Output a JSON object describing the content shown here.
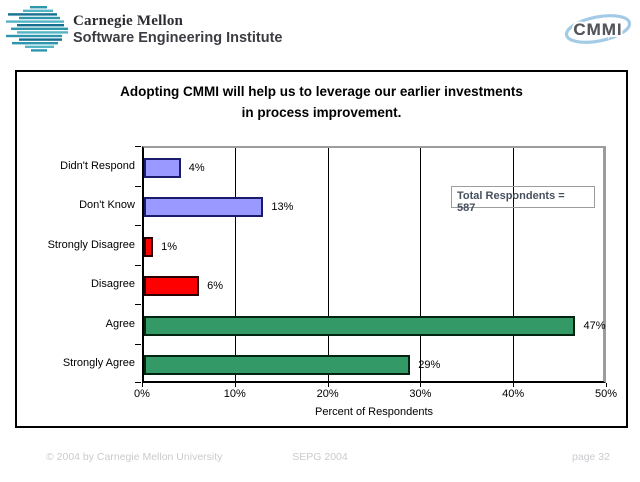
{
  "header": {
    "org_line1": "Carnegie Mellon",
    "org_line2": "Software Engineering Institute",
    "cmmi_logo_text": "CMMI"
  },
  "slide": {
    "title_line1": "Adopting CMMI will help us to leverage our earlier investments",
    "title_line2": "in process improvement.",
    "annotation_line1": "Total Respondents =",
    "annotation_line2": "587"
  },
  "chart_data": {
    "type": "bar",
    "orientation": "horizontal",
    "title": "Adopting CMMI will help us to leverage our earlier investments in process improvement.",
    "categories": [
      "Didn't Respond",
      "Don't Know",
      "Strongly Disagree",
      "Disagree",
      "Agree",
      "Strongly Agree"
    ],
    "values": [
      4,
      13,
      1,
      6,
      47,
      29
    ],
    "value_labels": [
      "4%",
      "13%",
      "1%",
      "6%",
      "47%",
      "29%"
    ],
    "bar_colors": [
      "#9999FF",
      "#9999FF",
      "#FF0000",
      "#FF0000",
      "#339966",
      "#339966"
    ],
    "bar_border_colors": [
      "#1b1b6b",
      "#1b1b6b",
      "#2a0000",
      "#2a0000",
      "#00240f",
      "#00240f"
    ],
    "xlabel": "Percent of Respondents",
    "x_ticks": [
      "0%",
      "10%",
      "20%",
      "30%",
      "40%",
      "50%"
    ],
    "xlim": [
      0,
      50
    ],
    "grid": true,
    "legend": "none",
    "annotation": "Total Respondents = 587"
  },
  "footer": {
    "left": "© 2004 by Carnegie Mellon University",
    "center": "SEPG 2004",
    "right": "page 32"
  }
}
